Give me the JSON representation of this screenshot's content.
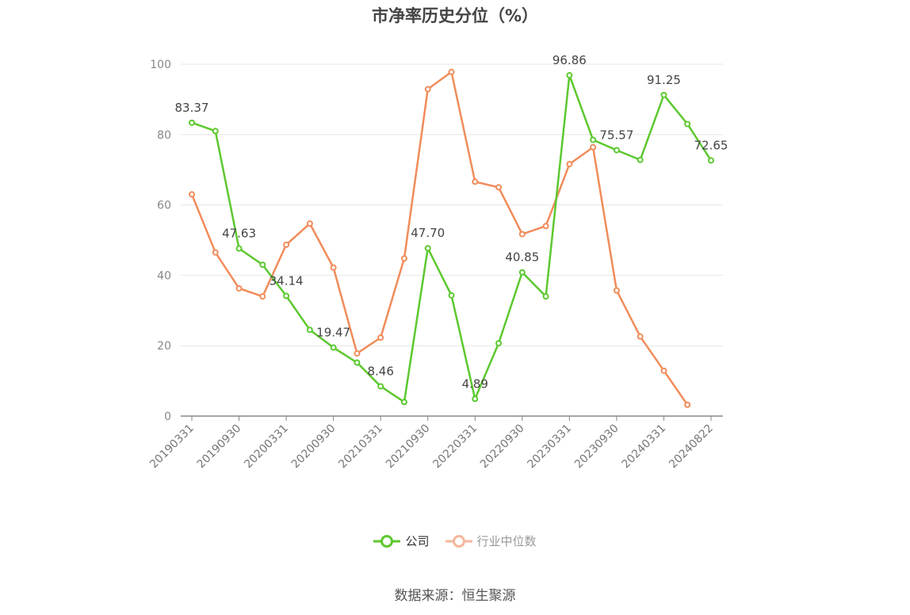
{
  "title": "市净率历史分位（%）",
  "source": "数据来源：恒生聚源",
  "colors": {
    "company": "#5cc82f",
    "industry": "#f08c5a",
    "industry_legend": "#f5b79c",
    "grid": "#e6e6e6",
    "axis": "#888888"
  },
  "chart_data": {
    "type": "line",
    "title": "市净率历史分位（%）",
    "ylim": [
      0,
      100
    ],
    "yticks": [
      0,
      20,
      40,
      60,
      80,
      100
    ],
    "grid": true,
    "legend_position": "bottom-center",
    "x": [
      "20190331",
      "20190630",
      "20190930",
      "20191231",
      "20200331",
      "20200630",
      "20200930",
      "20201231",
      "20210331",
      "20210630",
      "20210930",
      "20211231",
      "20220331",
      "20220630",
      "20220930",
      "20221231",
      "20230331",
      "20230630",
      "20230930",
      "20231231",
      "20240331",
      "20240630",
      "20240822"
    ],
    "xtick_labels": [
      "20190331",
      "20190930",
      "20200331",
      "20200930",
      "20210331",
      "20210930",
      "20220331",
      "20220930",
      "20230331",
      "20230930",
      "20240331",
      "20240822"
    ],
    "series": [
      {
        "name": "公司",
        "values": [
          83.37,
          81.0,
          47.63,
          43.0,
          34.14,
          24.5,
          19.47,
          15.2,
          8.46,
          4.0,
          47.7,
          34.3,
          4.89,
          20.7,
          40.85,
          34.0,
          96.86,
          78.5,
          75.57,
          72.8,
          91.25,
          83.0,
          72.65
        ],
        "data_labels": {
          "0": "83.37",
          "2": "47.63",
          "4": "34.14",
          "6": "19.47",
          "8": "8.46",
          "10": "47.70",
          "12": "4.89",
          "14": "40.85",
          "16": "96.86",
          "18": "75.57",
          "20": "91.25",
          "22": "72.65"
        }
      },
      {
        "name": "行业中位数",
        "values": [
          63.0,
          46.5,
          36.3,
          34.0,
          48.7,
          54.7,
          42.2,
          17.8,
          22.3,
          44.8,
          92.9,
          97.8,
          66.6,
          65.0,
          51.7,
          54.0,
          71.6,
          76.4,
          35.7,
          22.6,
          12.9,
          3.2,
          null
        ]
      }
    ]
  },
  "legend": {
    "company": "公司",
    "industry": "行业中位数"
  }
}
